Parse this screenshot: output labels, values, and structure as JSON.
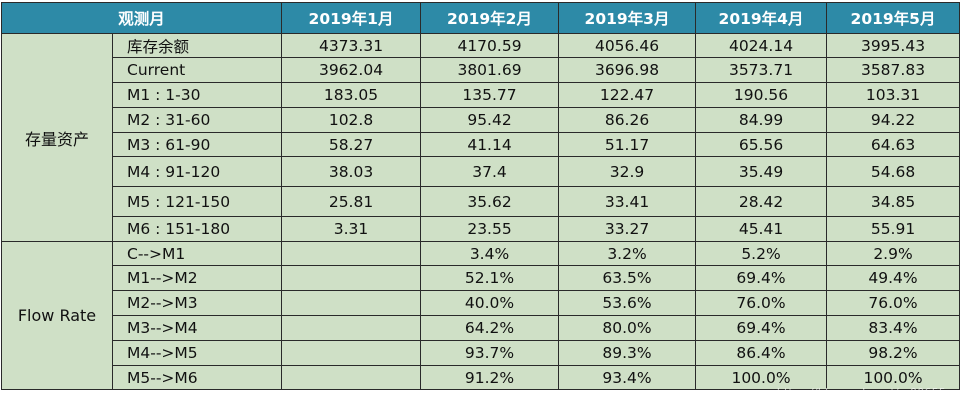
{
  "header": {
    "corner": "观测月",
    "months": [
      "2019年1月",
      "2019年2月",
      "2019年3月",
      "2019年4月",
      "2019年5月"
    ]
  },
  "groups": [
    {
      "label": "存量资产",
      "rows": [
        {
          "label": "库存余额",
          "values": [
            "4373.31",
            "4170.59",
            "4056.46",
            "4024.14",
            "3995.43"
          ]
        },
        {
          "label": "Current",
          "values": [
            "3962.04",
            "3801.69",
            "3696.98",
            "3573.71",
            "3587.83"
          ]
        },
        {
          "label": "M1 : 1-30",
          "values": [
            "183.05",
            "135.77",
            "122.47",
            "190.56",
            "103.31"
          ]
        },
        {
          "label": "M2 : 31-60",
          "values": [
            "102.8",
            "95.42",
            "86.26",
            "84.99",
            "94.22"
          ]
        },
        {
          "label": "M3 : 61-90",
          "values": [
            "58.27",
            "41.14",
            "51.17",
            "65.56",
            "64.63"
          ]
        },
        {
          "label": "M4 : 91-120",
          "values": [
            "38.03",
            "37.4",
            "32.9",
            "35.49",
            "54.68"
          ]
        },
        {
          "label": "M5 : 121-150",
          "values": [
            "25.81",
            "35.62",
            "33.41",
            "28.42",
            "34.85"
          ]
        },
        {
          "label": "M6 : 151-180",
          "values": [
            "3.31",
            "23.55",
            "33.27",
            "45.41",
            "55.91"
          ]
        }
      ]
    },
    {
      "label": "Flow Rate",
      "rows": [
        {
          "label": "C-->M1",
          "values": [
            "",
            "3.4%",
            "3.2%",
            "5.2%",
            "2.9%"
          ]
        },
        {
          "label": "M1-->M2",
          "values": [
            "",
            "52.1%",
            "63.5%",
            "69.4%",
            "49.4%"
          ]
        },
        {
          "label": "M2-->M3",
          "values": [
            "",
            "40.0%",
            "53.6%",
            "76.0%",
            "76.0%"
          ]
        },
        {
          "label": "M3-->M4",
          "values": [
            "",
            "64.2%",
            "80.0%",
            "69.4%",
            "83.4%"
          ]
        },
        {
          "label": "M4-->M5",
          "values": [
            "",
            "93.7%",
            "89.3%",
            "86.4%",
            "98.2%"
          ]
        },
        {
          "label": "M5-->M6",
          "values": [
            "",
            "91.2%",
            "93.4%",
            "100.0%",
            "100.0%"
          ]
        }
      ]
    }
  ],
  "watermark": "https://blog.csdn.net/...00655"
}
